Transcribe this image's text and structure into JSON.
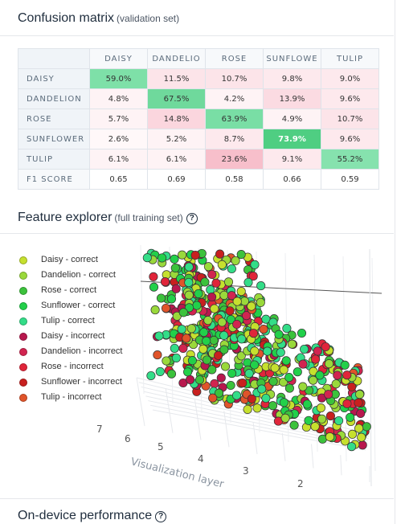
{
  "confusion_matrix": {
    "title": "Confusion matrix",
    "subtitle": "(validation set)",
    "columns": [
      "DAISY",
      "DANDELIO",
      "ROSE",
      "SUNFLOWE",
      "TULIP"
    ],
    "rows": [
      {
        "label": "DAISY",
        "cells": [
          "59.0%",
          "11.5%",
          "10.7%",
          "9.8%",
          "9.0%"
        ]
      },
      {
        "label": "DANDELION",
        "cells": [
          "4.8%",
          "67.5%",
          "4.2%",
          "13.9%",
          "9.6%"
        ]
      },
      {
        "label": "ROSE",
        "cells": [
          "5.7%",
          "14.8%",
          "63.9%",
          "4.9%",
          "10.7%"
        ]
      },
      {
        "label": "SUNFLOWER",
        "cells": [
          "2.6%",
          "5.2%",
          "8.7%",
          "73.9%",
          "9.6%"
        ]
      },
      {
        "label": "TULIP",
        "cells": [
          "6.1%",
          "6.1%",
          "23.6%",
          "9.1%",
          "55.2%"
        ]
      }
    ],
    "f1": {
      "label": "F1 SCORE",
      "cells": [
        "0.65",
        "0.69",
        "0.58",
        "0.66",
        "0.59"
      ]
    }
  },
  "feature_explorer": {
    "title": "Feature explorer",
    "subtitle": "(full training set)",
    "legend": [
      {
        "label": "Daisy - correct",
        "color": "#c6e02e"
      },
      {
        "label": "Dandelion - correct",
        "color": "#9ad93b"
      },
      {
        "label": "Rose - correct",
        "color": "#3cc23c"
      },
      {
        "label": "Sunflower - correct",
        "color": "#22d04a"
      },
      {
        "label": "Tulip - correct",
        "color": "#33dd88"
      },
      {
        "label": "Daisy - incorrect",
        "color": "#b8184e"
      },
      {
        "label": "Dandelion - incorrect",
        "color": "#d12450"
      },
      {
        "label": "Rose - incorrect",
        "color": "#e0253a"
      },
      {
        "label": "Sunflower - incorrect",
        "color": "#c8201f"
      },
      {
        "label": "Tulip - incorrect",
        "color": "#e0542a"
      }
    ],
    "axis_ticks": [
      "7",
      "6",
      "5",
      "4",
      "3",
      "2"
    ],
    "axis_label": "Visualization layer"
  },
  "on_device": {
    "title": "On-device performance"
  },
  "colors": {
    "diag_strong": "#7ee0a8",
    "diag_mid": "#8fe3b4",
    "pink_light": "#fdecef",
    "pink_mid": "#fbd0d8",
    "pink_strong": "#f7c0cb"
  }
}
